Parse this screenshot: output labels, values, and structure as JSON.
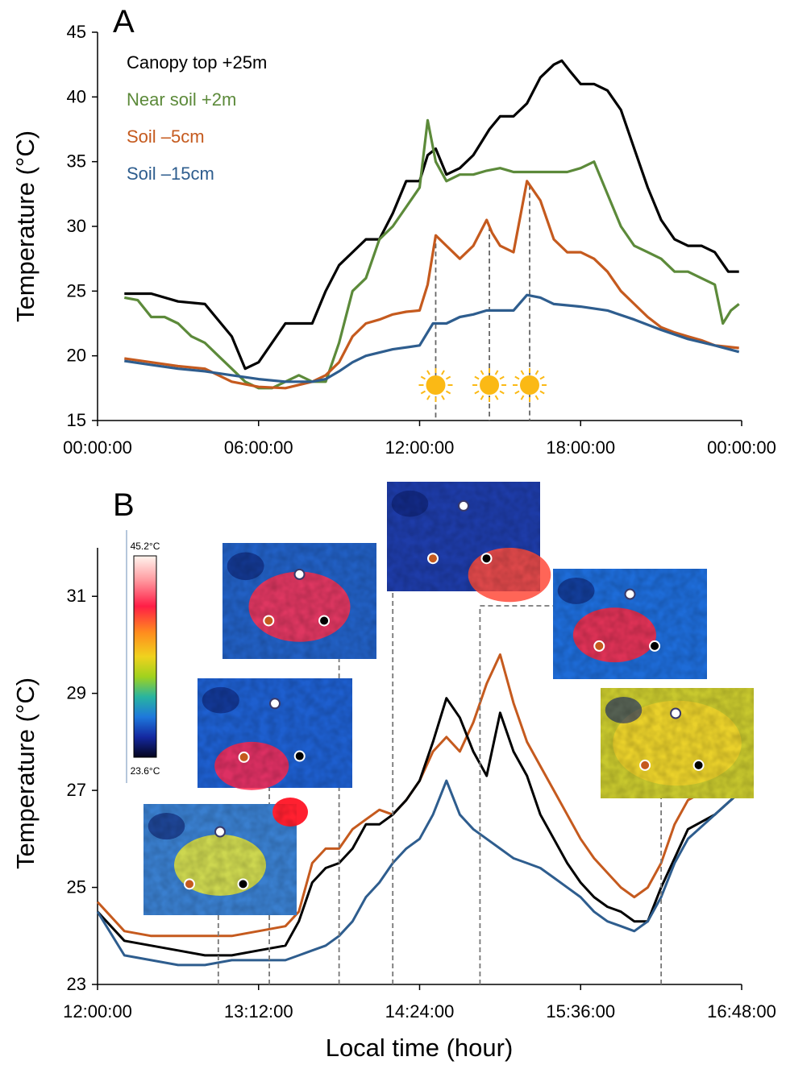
{
  "chart_data": [
    {
      "type": "line",
      "panel_label": "A",
      "ylabel": "Temperature (°C)",
      "xlabel": "",
      "ylim": [
        15,
        45
      ],
      "yticks": [
        "15",
        "20",
        "25",
        "30",
        "35",
        "40",
        "45"
      ],
      "xlim_hours": [
        0,
        24
      ],
      "xticks": [
        "00:00:00",
        "06:00:00",
        "12:00:00",
        "18:00:00",
        "00:00:00"
      ],
      "legend_position": "top-left",
      "series": [
        {
          "name": "Canopy top +25m",
          "color": "#000000",
          "x": [
            1,
            2,
            3,
            4,
            5,
            5.5,
            6,
            7,
            8,
            8.5,
            9,
            9.5,
            10,
            10.5,
            11,
            11.5,
            12,
            12.3,
            12.6,
            13,
            13.5,
            14,
            14.3,
            14.6,
            15,
            15.5,
            16,
            16.5,
            17,
            17.3,
            17.6,
            18,
            18.5,
            19,
            19.5,
            20,
            20.5,
            21,
            21.5,
            22,
            22.5,
            23,
            23.5,
            23.9
          ],
          "y": [
            24.8,
            24.8,
            24.2,
            24,
            21.5,
            19,
            19.5,
            22.5,
            22.5,
            25,
            27,
            28,
            29,
            29,
            31,
            33.5,
            33.5,
            35.5,
            36,
            34,
            34.5,
            35.5,
            36.5,
            37.5,
            38.5,
            38.5,
            39.5,
            41.5,
            42.5,
            42.8,
            42,
            41,
            41,
            40.5,
            39,
            36,
            33,
            30.5,
            29,
            28.5,
            28.5,
            28,
            26.5,
            26.5
          ]
        },
        {
          "name": "Near soil +2m",
          "color": "#5c8a3a",
          "x": [
            1,
            1.5,
            2,
            2.5,
            3,
            3.5,
            4,
            4.5,
            5,
            5.5,
            6,
            6.5,
            7,
            7.5,
            8,
            8.5,
            9,
            9.5,
            10,
            10.5,
            11,
            11.5,
            12,
            12.3,
            12.6,
            13,
            13.5,
            14,
            14.5,
            15,
            15.5,
            16,
            16.5,
            17,
            17.5,
            18,
            18.5,
            19,
            19.5,
            20,
            20.5,
            21,
            21.5,
            22,
            22.5,
            23,
            23.3,
            23.6,
            23.9
          ],
          "y": [
            24.5,
            24.3,
            23,
            23,
            22.5,
            21.5,
            21,
            20,
            19,
            18,
            17.5,
            17.5,
            18,
            18.5,
            18,
            18,
            21,
            25,
            26,
            29,
            30,
            31.5,
            33,
            38.2,
            35,
            33.5,
            34,
            34,
            34.3,
            34.5,
            34.2,
            34.2,
            34.2,
            34.2,
            34.2,
            34.5,
            35,
            32.5,
            30,
            28.5,
            28,
            27.5,
            26.5,
            26.5,
            26,
            25.5,
            22.5,
            23.5,
            24
          ]
        },
        {
          "name": "Soil –5cm",
          "color": "#c55a1e",
          "x": [
            1,
            2,
            3,
            4,
            5,
            6,
            7,
            8,
            8.5,
            9,
            9.5,
            10,
            10.5,
            11,
            11.5,
            12,
            12.3,
            12.6,
            13,
            13.5,
            14,
            14.5,
            14.7,
            15,
            15.5,
            16,
            16.5,
            17,
            17.5,
            18,
            18.5,
            19,
            19.5,
            20,
            20.5,
            21,
            21.5,
            22,
            22.5,
            23,
            23.9
          ],
          "y": [
            19.8,
            19.5,
            19.2,
            19,
            18,
            17.6,
            17.5,
            18,
            18.5,
            19.5,
            21.5,
            22.5,
            22.8,
            23.2,
            23.4,
            23.5,
            25.5,
            29.3,
            28.5,
            27.5,
            28.5,
            30.5,
            29.5,
            28.5,
            28,
            33.5,
            32,
            29,
            28,
            28,
            27.5,
            26.5,
            25,
            24,
            23,
            22.2,
            21.8,
            21.5,
            21.2,
            20.8,
            20.6
          ]
        },
        {
          "name": "Soil –15cm",
          "color": "#2e5d8e",
          "x": [
            1,
            2,
            3,
            4,
            5,
            6,
            7,
            8,
            8.5,
            9,
            9.5,
            10,
            11,
            12,
            12.5,
            13,
            13.5,
            14,
            14.5,
            15,
            15.5,
            16,
            16.5,
            17,
            18,
            19,
            20,
            21,
            22,
            23,
            23.9
          ],
          "y": [
            19.6,
            19.3,
            19,
            18.8,
            18.5,
            18.2,
            18,
            18,
            18.2,
            18.8,
            19.5,
            20,
            20.5,
            20.8,
            22.5,
            22.5,
            23,
            23.2,
            23.5,
            23.5,
            23.5,
            24.7,
            24.5,
            24,
            23.8,
            23.5,
            22.8,
            22,
            21.3,
            20.8,
            20.3
          ]
        }
      ],
      "sun_markers_hours": [
        12.6,
        14.6,
        16.1
      ]
    },
    {
      "type": "line",
      "panel_label": "B",
      "ylabel": "Temperature (°C)",
      "xlabel": "Local time (hour)",
      "ylim": [
        23,
        32
      ],
      "yticks": [
        "23",
        "25",
        "27",
        "29",
        "31"
      ],
      "xlim_hours": [
        12,
        16.8
      ],
      "xticks": [
        "12:00:00",
        "13:12:00",
        "14:24:00",
        "15:36:00",
        "16:48:00"
      ],
      "series": [
        {
          "color": "#c55a1e",
          "x": [
            12,
            12.2,
            12.4,
            12.6,
            12.8,
            13,
            13.2,
            13.4,
            13.5,
            13.6,
            13.7,
            13.8,
            13.9,
            14,
            14.1,
            14.2,
            14.3,
            14.4,
            14.5,
            14.6,
            14.7,
            14.8,
            14.9,
            15,
            15.1,
            15.2,
            15.3,
            15.4,
            15.5,
            15.6,
            15.7,
            15.8,
            15.9,
            16,
            16.1,
            16.2,
            16.3,
            16.4,
            16.6,
            16.8
          ],
          "y": [
            24.7,
            24.1,
            24,
            24,
            24,
            24,
            24.1,
            24.2,
            24.5,
            25.5,
            25.8,
            25.8,
            26.2,
            26.4,
            26.6,
            26.5,
            26.8,
            27.2,
            27.8,
            28.1,
            27.8,
            28.4,
            29.2,
            29.8,
            28.8,
            28,
            27.5,
            27,
            26.5,
            26,
            25.6,
            25.3,
            25,
            24.8,
            25,
            25.5,
            26.3,
            26.8,
            27.1,
            27.3
          ]
        },
        {
          "color": "#000000",
          "x": [
            12,
            12.2,
            12.4,
            12.6,
            12.8,
            13,
            13.2,
            13.4,
            13.5,
            13.6,
            13.7,
            13.8,
            13.9,
            14,
            14.1,
            14.2,
            14.3,
            14.4,
            14.5,
            14.6,
            14.7,
            14.8,
            14.9,
            15,
            15.1,
            15.2,
            15.3,
            15.4,
            15.5,
            15.6,
            15.7,
            15.8,
            15.9,
            16,
            16.1,
            16.2,
            16.3,
            16.4,
            16.6,
            16.8
          ],
          "y": [
            24.5,
            23.9,
            23.8,
            23.7,
            23.6,
            23.6,
            23.7,
            23.8,
            24.3,
            25.1,
            25.4,
            25.5,
            25.8,
            26.3,
            26.3,
            26.5,
            26.8,
            27.2,
            28,
            28.9,
            28.5,
            27.8,
            27.3,
            28.6,
            27.8,
            27.3,
            26.5,
            26,
            25.5,
            25.1,
            24.8,
            24.6,
            24.5,
            24.3,
            24.3,
            25,
            25.6,
            26.2,
            26.5,
            27
          ]
        },
        {
          "color": "#2e5d8e",
          "x": [
            12,
            12.2,
            12.4,
            12.6,
            12.8,
            13,
            13.2,
            13.4,
            13.5,
            13.6,
            13.7,
            13.8,
            13.9,
            14,
            14.1,
            14.2,
            14.3,
            14.4,
            14.5,
            14.6,
            14.7,
            14.8,
            14.9,
            15,
            15.1,
            15.2,
            15.3,
            15.4,
            15.5,
            15.6,
            15.7,
            15.8,
            15.9,
            16,
            16.1,
            16.2,
            16.3,
            16.4,
            16.6,
            16.8
          ],
          "y": [
            24.5,
            23.6,
            23.5,
            23.4,
            23.4,
            23.5,
            23.5,
            23.5,
            23.6,
            23.7,
            23.8,
            24,
            24.3,
            24.8,
            25.1,
            25.5,
            25.8,
            26,
            26.5,
            27.2,
            26.5,
            26.2,
            26,
            25.8,
            25.6,
            25.5,
            25.4,
            25.2,
            25,
            24.8,
            24.5,
            24.3,
            24.2,
            24.1,
            24.3,
            24.8,
            25.5,
            26,
            26.5,
            27
          ]
        }
      ],
      "colorbar": {
        "max_label": "45.2°C",
        "min_label": "23.6°C"
      },
      "thermal_image_times_hours": [
        12.9,
        13.28,
        13.8,
        14.2,
        14.85,
        16.2
      ]
    }
  ]
}
